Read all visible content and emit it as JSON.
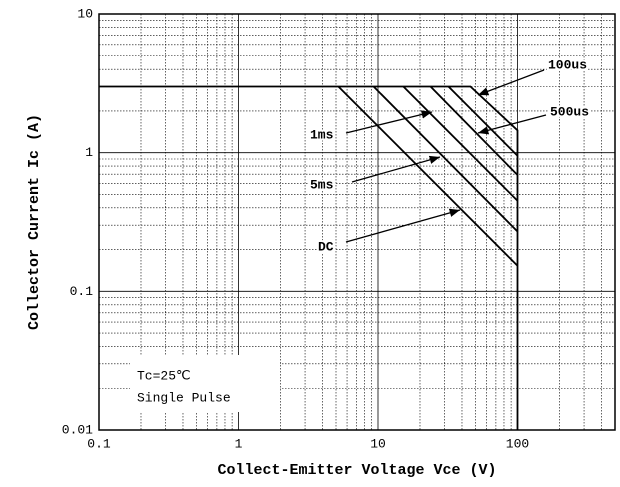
{
  "chart_data": {
    "type": "line",
    "xlabel": "Collect-Emitter Voltage Vce (V)",
    "ylabel": "Collector Current Ic (A)",
    "xscale": "log",
    "yscale": "log",
    "xlim": [
      0.1,
      500
    ],
    "ylim": [
      0.01,
      10
    ],
    "xticks": [
      0.1,
      1,
      10,
      100
    ],
    "yticks": [
      0.01,
      0.1,
      1,
      10
    ],
    "grid": true,
    "color": "#000000",
    "series": [
      {
        "name": "100us",
        "x": [
          0.1,
          46,
          100,
          100
        ],
        "values": [
          3,
          3,
          1.45,
          0.01
        ]
      },
      {
        "x": [
          32,
          100
        ],
        "values": [
          3,
          0.95
        ]
      },
      {
        "name": "500us",
        "x": [
          23.8,
          100
        ],
        "values": [
          3,
          0.69
        ]
      },
      {
        "name": "1ms",
        "x": [
          15.2,
          100
        ],
        "values": [
          3,
          0.45
        ]
      },
      {
        "name": "5ms",
        "x": [
          9.3,
          100
        ],
        "values": [
          3,
          0.27
        ]
      },
      {
        "name": "DC",
        "x": [
          5.2,
          100
        ],
        "values": [
          3,
          0.153
        ]
      }
    ],
    "annotations": [
      "Tc=25℃",
      "Single Pulse"
    ]
  }
}
